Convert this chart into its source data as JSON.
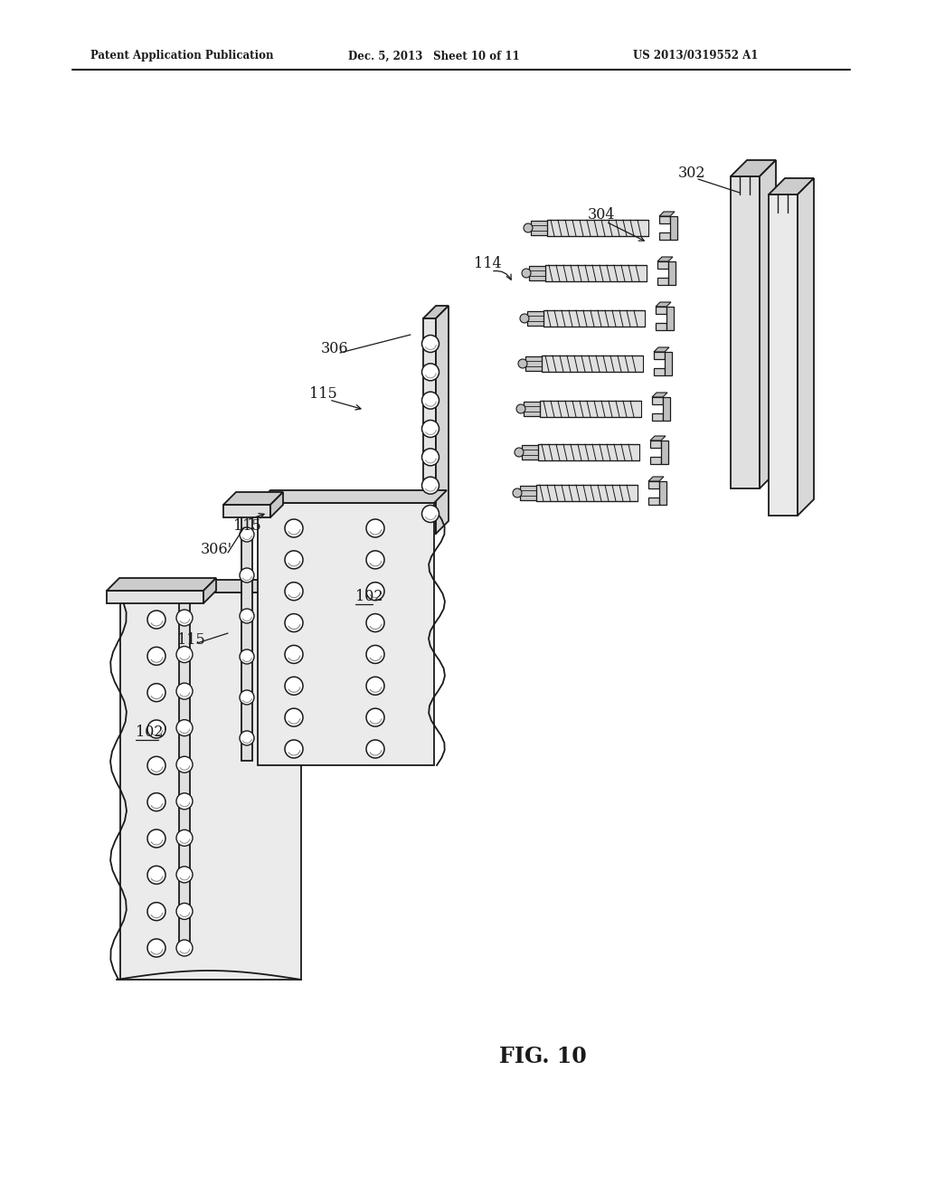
{
  "bg": "#ffffff",
  "lc": "#1a1a1a",
  "gray1": "#e8e8e8",
  "gray2": "#d0d0d0",
  "gray3": "#b8b8b8",
  "header_left": "Patent Application Publication",
  "header_mid": "Dec. 5, 2013  Sheet 10 of 11",
  "header_right": "US 2013/0319552 A1",
  "fig_caption": "FIG. 10"
}
